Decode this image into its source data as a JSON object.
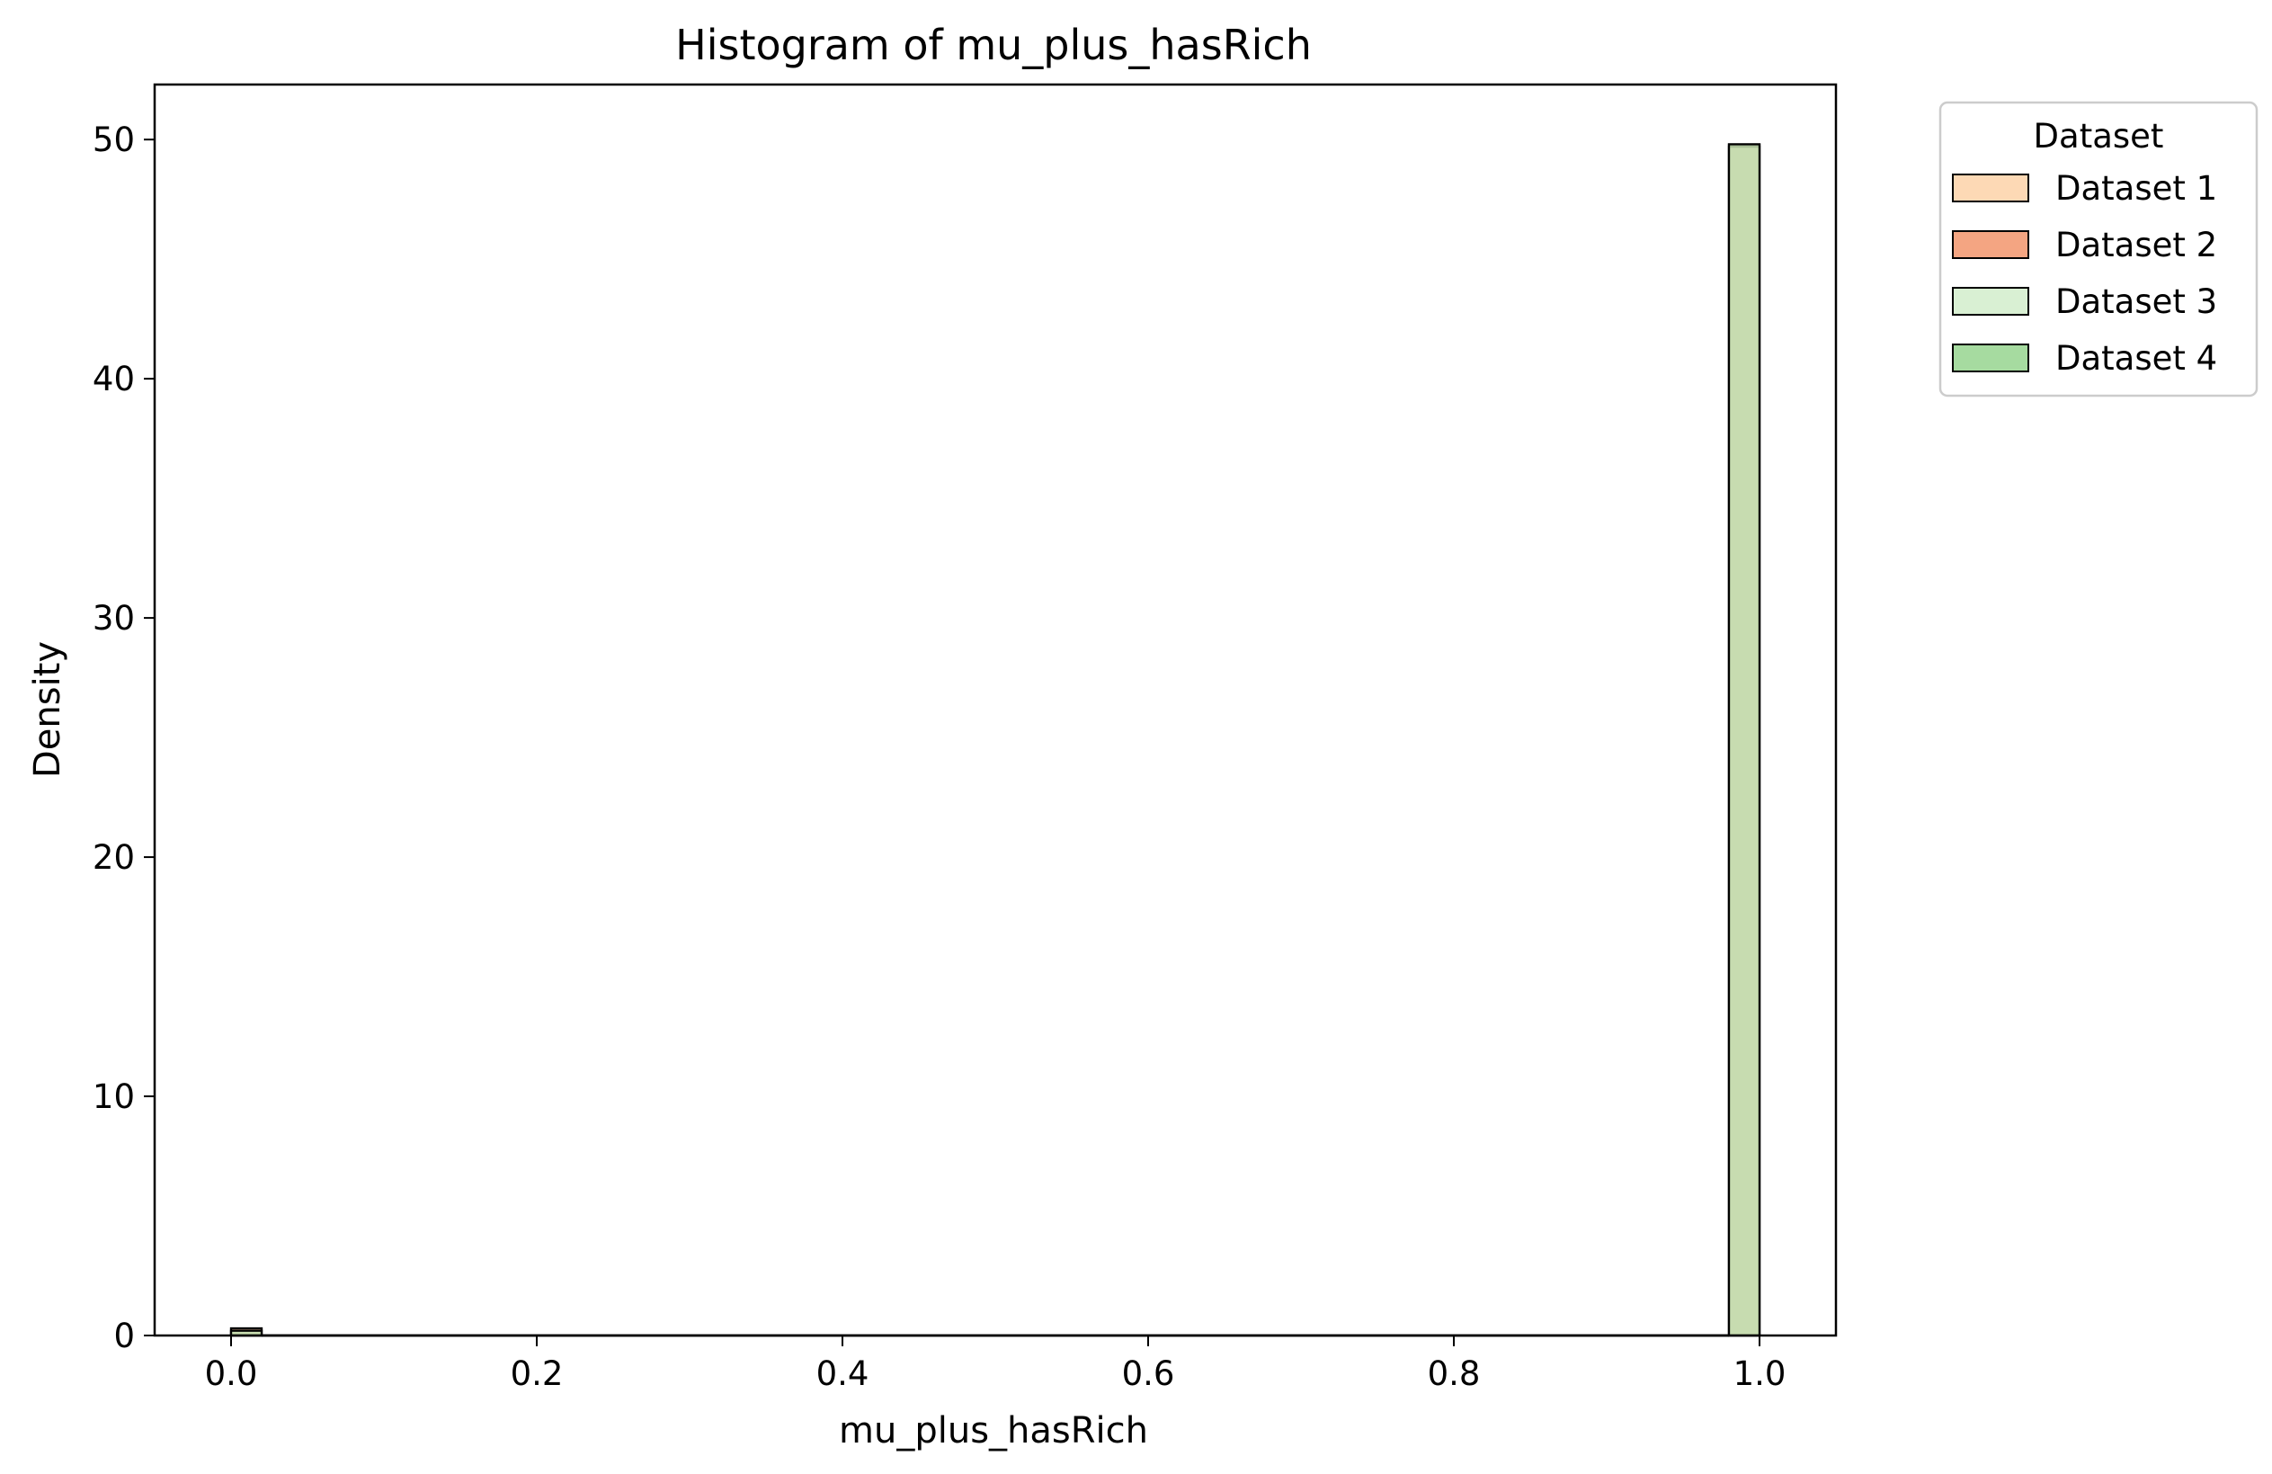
{
  "chart_data": {
    "type": "bar",
    "title": "Histogram of mu_plus_hasRich",
    "xlabel": "mu_plus_hasRich",
    "ylabel": "Density",
    "xlim": [
      -0.05,
      1.05
    ],
    "ylim": [
      0,
      52.3
    ],
    "xticks": [
      0.0,
      0.2,
      0.4,
      0.6,
      0.8,
      1.0
    ],
    "xtick_labels": [
      "0.0",
      "0.2",
      "0.4",
      "0.6",
      "0.8",
      "1.0"
    ],
    "yticks": [
      0,
      10,
      20,
      30,
      40,
      50
    ],
    "ytick_labels": [
      "0",
      "10",
      "20",
      "30",
      "40",
      "50"
    ],
    "bin_width": 0.02,
    "grid": false,
    "legend": {
      "title": "Dataset",
      "placement": "outside-top-right"
    },
    "series": [
      {
        "name": "Dataset 1",
        "color": "#fdd9b5",
        "bins": [
          {
            "x0": 0.0,
            "x1": 0.02,
            "density": 0.3
          },
          {
            "x0": 0.98,
            "x1": 1.0,
            "density": 49.7
          }
        ]
      },
      {
        "name": "Dataset 2",
        "color": "#f4a582",
        "bins": [
          {
            "x0": 0.0,
            "x1": 0.02,
            "density": 0.3
          },
          {
            "x0": 0.98,
            "x1": 1.0,
            "density": 49.8
          }
        ]
      },
      {
        "name": "Dataset 3",
        "color": "#d9f0d3",
        "bins": [
          {
            "x0": 0.0,
            "x1": 0.02,
            "density": 0.2
          },
          {
            "x0": 0.98,
            "x1": 1.0,
            "density": 49.8
          }
        ]
      },
      {
        "name": "Dataset 4",
        "color": "#a6dba0",
        "bins": [
          {
            "x0": 0.0,
            "x1": 0.02,
            "density": 0.2
          },
          {
            "x0": 0.98,
            "x1": 1.0,
            "density": 49.8
          }
        ]
      }
    ]
  }
}
